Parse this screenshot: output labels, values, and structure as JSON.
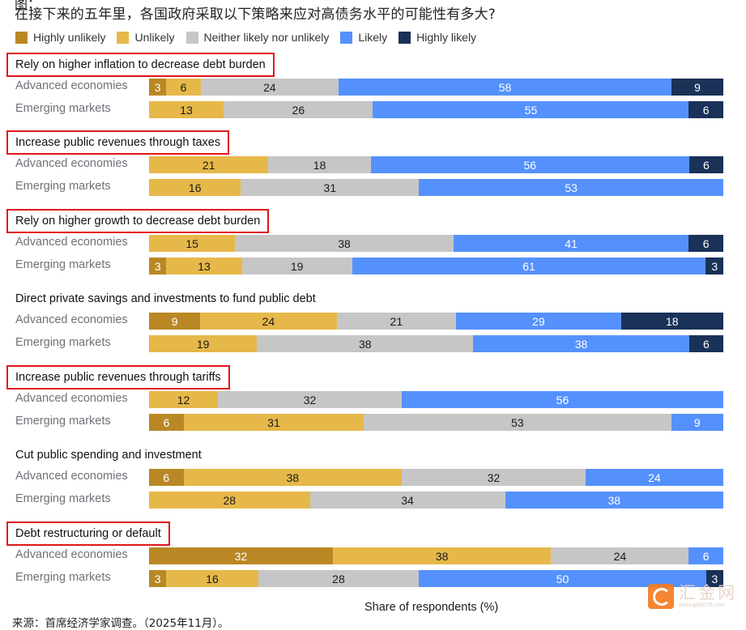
{
  "header": {
    "title": "在接下来的五年里，各国政府采取以下策略来应对高债务水平的可能性有多大?"
  },
  "legend": [
    {
      "label": "Highly unlikely",
      "color": "#b98825"
    },
    {
      "label": "Unlikely",
      "color": "#e6b84a"
    },
    {
      "label": "Neither likely nor unlikely",
      "color": "#c6c6c6"
    },
    {
      "label": "Likely",
      "color": "#5591fd"
    },
    {
      "label": "Highly likely",
      "color": "#1a3158"
    }
  ],
  "row_labels": {
    "advanced": "Advanced economies",
    "emerging": "Emerging markets"
  },
  "sections": [
    {
      "title": "Rely on higher inflation to decrease debt burden",
      "highlighted": true
    },
    {
      "title": "Increase public revenues through taxes",
      "highlighted": true
    },
    {
      "title": "Rely on higher growth to decrease debt burden",
      "highlighted": true
    },
    {
      "title": "Direct private savings and investments to fund public debt",
      "highlighted": false
    },
    {
      "title": "Increase public revenues through tariffs",
      "highlighted": true
    },
    {
      "title": "Cut public spending and investment",
      "highlighted": false
    },
    {
      "title": "Debt restructuring or default",
      "highlighted": true
    }
  ],
  "footer": {
    "xlabel": "Share of respondents (%)",
    "source": "来源：首席经济学家调查。（2025年11月）。"
  },
  "watermark": {
    "name": "汇金网",
    "url": "www.gold678.com"
  },
  "chart_data": {
    "type": "bar",
    "orientation": "horizontal-stacked-100",
    "title": "在接下来的五年里，各国政府采取以下策略来应对高债务水平的可能性有多大?",
    "xlabel": "Share of respondents (%)",
    "ylabel": "",
    "xlim": [
      0,
      100
    ],
    "grid": false,
    "legend_position": "top",
    "categories_stack": [
      "Highly unlikely",
      "Unlikely",
      "Neither likely nor unlikely",
      "Likely",
      "Highly likely"
    ],
    "groups": [
      {
        "strategy": "Rely on higher inflation to decrease debt burden",
        "advanced": [
          3,
          6,
          24,
          58,
          9
        ],
        "emerging": [
          0,
          13,
          26,
          55,
          6
        ]
      },
      {
        "strategy": "Increase public revenues through taxes",
        "advanced": [
          0,
          21,
          18,
          56,
          6
        ],
        "emerging": [
          0,
          16,
          31,
          53,
          0
        ]
      },
      {
        "strategy": "Rely on higher growth to decrease debt burden",
        "advanced": [
          0,
          15,
          38,
          41,
          6
        ],
        "emerging": [
          3,
          13,
          19,
          61,
          3
        ]
      },
      {
        "strategy": "Direct private savings and investments to fund public debt",
        "advanced": [
          9,
          24,
          21,
          29,
          18
        ],
        "emerging": [
          0,
          19,
          38,
          38,
          6
        ]
      },
      {
        "strategy": "Increase public revenues through tariffs",
        "advanced": [
          0,
          12,
          32,
          56,
          0
        ],
        "emerging": [
          6,
          31,
          53,
          9,
          0
        ]
      },
      {
        "strategy": "Cut public spending and investment",
        "advanced": [
          6,
          38,
          32,
          24,
          0
        ],
        "emerging": [
          0,
          28,
          34,
          38,
          0
        ]
      },
      {
        "strategy": "Debt restructuring or default",
        "advanced": [
          32,
          38,
          24,
          6,
          0
        ],
        "emerging": [
          3,
          16,
          28,
          50,
          3
        ]
      }
    ]
  }
}
